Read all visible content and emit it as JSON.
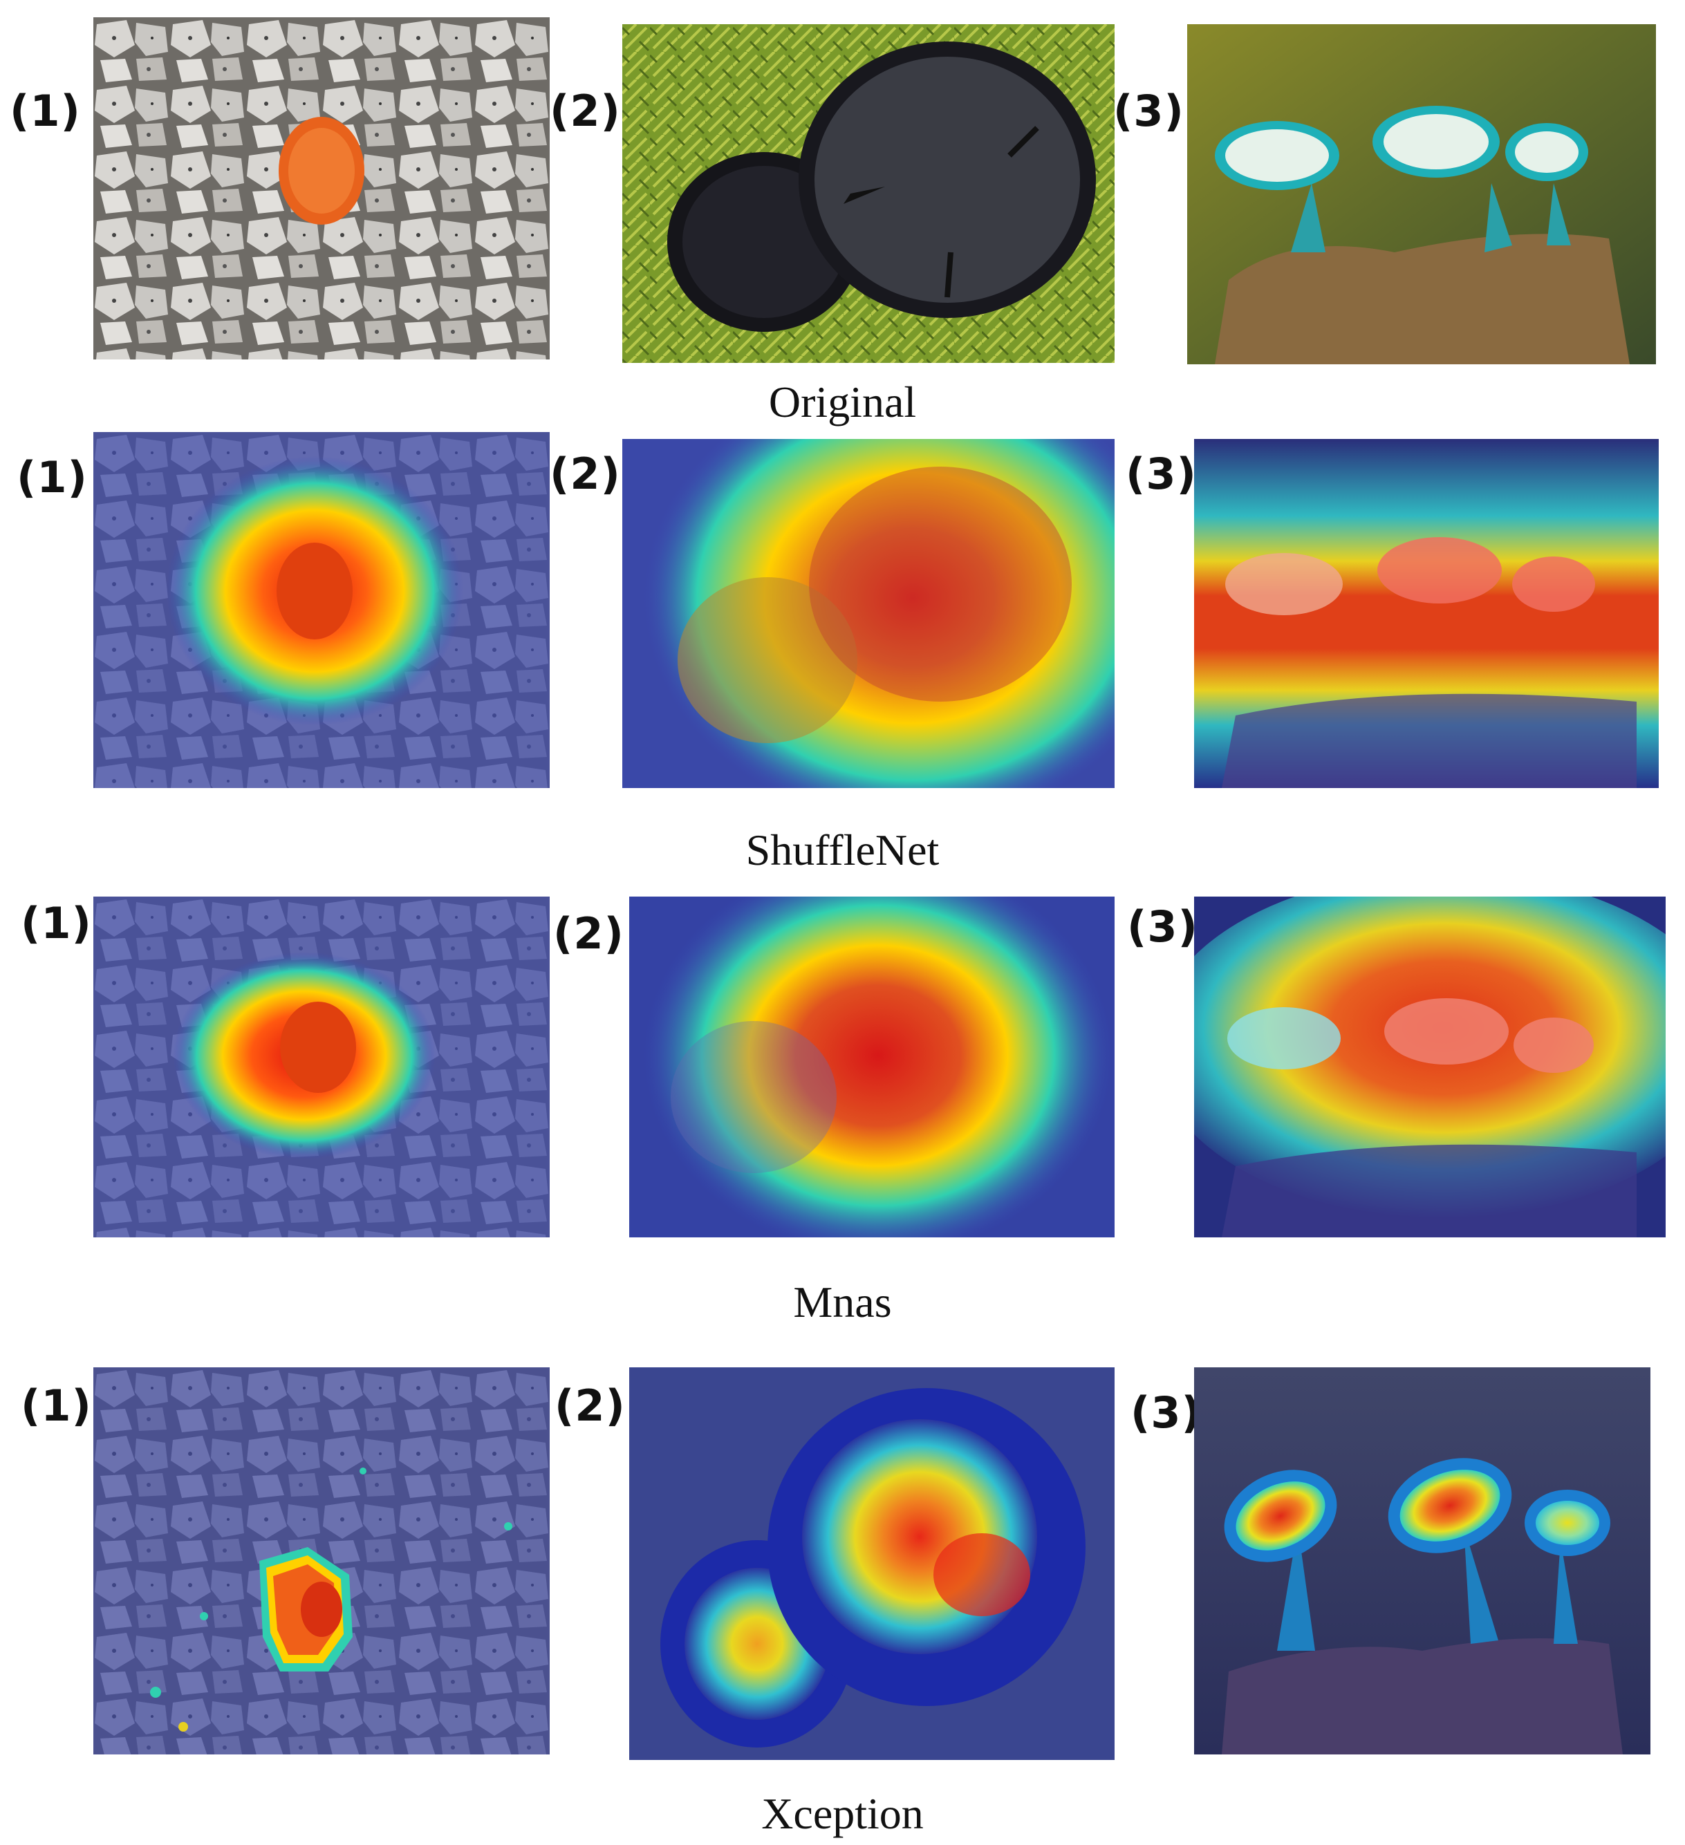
{
  "rows": [
    {
      "caption": "Original",
      "labels": [
        "(1)",
        "(2)",
        "(3)"
      ],
      "overlay": "none"
    },
    {
      "caption": "ShuffleNet",
      "labels": [
        "(1)",
        "(2)",
        "(3)"
      ],
      "overlay": "gradcam"
    },
    {
      "caption": "Mnas",
      "labels": [
        "(1)",
        "(2)",
        "(3)"
      ],
      "overlay": "gradcam"
    },
    {
      "caption": "Xception",
      "labels": [
        "(1)",
        "(2)",
        "(3)"
      ],
      "overlay": "gradcam"
    }
  ],
  "colors": {
    "heat_hot": "#e01010",
    "heat_warm": "#ffd000",
    "heat_mid": "#30d0b0",
    "heat_cold": "#1c2aa8",
    "background": "#ffffff"
  }
}
